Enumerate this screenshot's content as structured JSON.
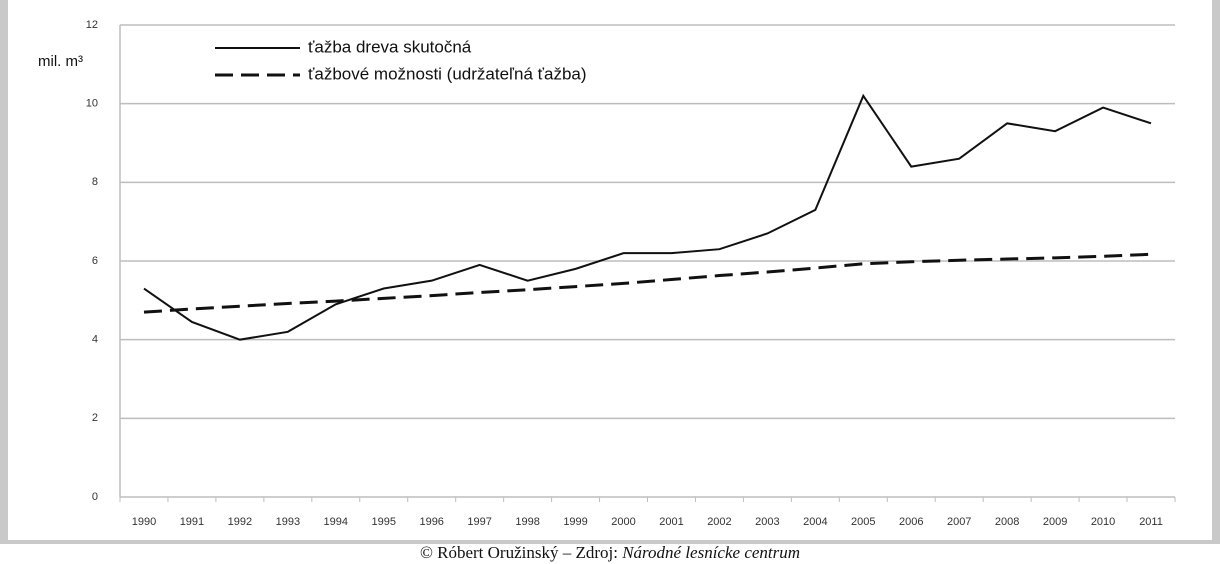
{
  "chart_data": {
    "type": "line",
    "y_label": "mil. m³",
    "categories": [
      "1990",
      "1991",
      "1992",
      "1993",
      "1994",
      "1995",
      "1996",
      "1997",
      "1998",
      "1999",
      "2000",
      "2001",
      "2002",
      "2003",
      "2004",
      "2005",
      "2006",
      "2007",
      "2008",
      "2009",
      "2010",
      "2011"
    ],
    "series": [
      {
        "name": "ťažba dreva skutočná",
        "color": "#111111",
        "dash": "solid",
        "values": [
          5.3,
          4.45,
          4.0,
          4.2,
          4.9,
          5.3,
          5.5,
          5.9,
          5.5,
          5.8,
          6.2,
          6.2,
          6.3,
          6.7,
          7.3,
          10.2,
          8.4,
          8.6,
          9.5,
          9.3,
          9.9,
          9.5
        ]
      },
      {
        "name": "ťažbové možnosti (udržateľná ťažba)",
        "color": "#111111",
        "dash": "dashed",
        "values": [
          4.7,
          4.78,
          4.85,
          4.92,
          4.98,
          5.05,
          5.12,
          5.2,
          5.27,
          5.35,
          5.43,
          5.53,
          5.63,
          5.72,
          5.82,
          5.93,
          5.98,
          6.02,
          6.05,
          6.08,
          6.12,
          6.17
        ]
      }
    ],
    "ylim": [
      0,
      12
    ],
    "yticks": [
      0,
      2,
      4,
      6,
      8,
      10,
      12
    ],
    "grid": true,
    "legend": "top-left"
  },
  "caption": {
    "text": "© Róbert Oružinský – Zdroj: ",
    "source": "Národné lesnícke centrum"
  }
}
